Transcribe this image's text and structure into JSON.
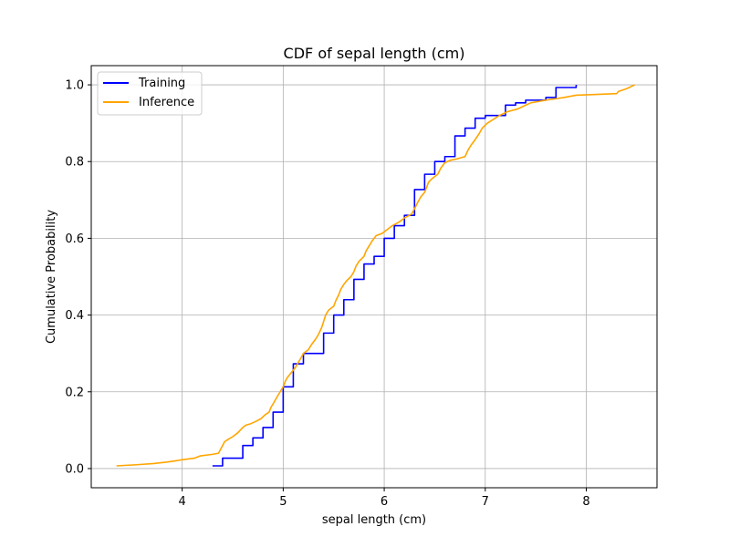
{
  "chart_data": {
    "type": "line",
    "title": "CDF of sepal length (cm)",
    "xlabel": "sepal length (cm)",
    "ylabel": "Cumulative Probability",
    "xlim": [
      3.1,
      8.7
    ],
    "ylim": [
      -0.05,
      1.05
    ],
    "xticks": [
      4,
      5,
      6,
      7,
      8
    ],
    "yticks": [
      0.0,
      0.2,
      0.4,
      0.6,
      0.8,
      1.0
    ],
    "xtick_labels": [
      "4",
      "5",
      "6",
      "7",
      "8"
    ],
    "ytick_labels": [
      "0.0",
      "0.2",
      "0.4",
      "0.6",
      "0.8",
      "1.0"
    ],
    "grid": true,
    "legend_position": "top-left",
    "series": [
      {
        "name": "Training",
        "color": "#0000ff",
        "step": true,
        "points": [
          [
            4.3,
            0.007
          ],
          [
            4.4,
            0.013
          ],
          [
            4.4,
            0.027
          ],
          [
            4.6,
            0.04
          ],
          [
            4.6,
            0.06
          ],
          [
            4.7,
            0.067
          ],
          [
            4.7,
            0.08
          ],
          [
            4.8,
            0.08
          ],
          [
            4.8,
            0.107
          ],
          [
            4.9,
            0.107
          ],
          [
            4.9,
            0.147
          ],
          [
            5.0,
            0.153
          ],
          [
            5.0,
            0.213
          ],
          [
            5.1,
            0.22
          ],
          [
            5.1,
            0.273
          ],
          [
            5.2,
            0.28
          ],
          [
            5.2,
            0.3
          ],
          [
            5.4,
            0.313
          ],
          [
            5.4,
            0.353
          ],
          [
            5.5,
            0.353
          ],
          [
            5.5,
            0.4
          ],
          [
            5.6,
            0.4
          ],
          [
            5.6,
            0.44
          ],
          [
            5.7,
            0.44
          ],
          [
            5.7,
            0.493
          ],
          [
            5.8,
            0.493
          ],
          [
            5.8,
            0.533
          ],
          [
            5.9,
            0.54
          ],
          [
            5.9,
            0.553
          ],
          [
            6.0,
            0.567
          ],
          [
            6.0,
            0.6
          ],
          [
            6.1,
            0.6
          ],
          [
            6.1,
            0.633
          ],
          [
            6.2,
            0.64
          ],
          [
            6.2,
            0.66
          ],
          [
            6.3,
            0.667
          ],
          [
            6.3,
            0.727
          ],
          [
            6.4,
            0.733
          ],
          [
            6.4,
            0.767
          ],
          [
            6.5,
            0.773
          ],
          [
            6.5,
            0.8
          ],
          [
            6.6,
            0.807
          ],
          [
            6.6,
            0.813
          ],
          [
            6.7,
            0.82
          ],
          [
            6.7,
            0.867
          ],
          [
            6.8,
            0.873
          ],
          [
            6.8,
            0.887
          ],
          [
            6.9,
            0.893
          ],
          [
            6.9,
            0.913
          ],
          [
            7.0,
            0.92
          ],
          [
            7.2,
            0.933
          ],
          [
            7.2,
            0.947
          ],
          [
            7.3,
            0.953
          ],
          [
            7.4,
            0.96
          ],
          [
            7.6,
            0.967
          ],
          [
            7.7,
            0.973
          ],
          [
            7.7,
            0.993
          ],
          [
            7.9,
            1.0
          ]
        ]
      },
      {
        "name": "Inference",
        "color": "#ffa500",
        "step": false,
        "points": [
          [
            3.35,
            0.007
          ],
          [
            3.55,
            0.01
          ],
          [
            3.72,
            0.013
          ],
          [
            3.85,
            0.017
          ],
          [
            3.93,
            0.02
          ],
          [
            4.0,
            0.023
          ],
          [
            4.12,
            0.027
          ],
          [
            4.18,
            0.033
          ],
          [
            4.3,
            0.037
          ],
          [
            4.36,
            0.04
          ],
          [
            4.38,
            0.05
          ],
          [
            4.4,
            0.06
          ],
          [
            4.42,
            0.07
          ],
          [
            4.46,
            0.077
          ],
          [
            4.5,
            0.083
          ],
          [
            4.55,
            0.093
          ],
          [
            4.6,
            0.107
          ],
          [
            4.63,
            0.113
          ],
          [
            4.68,
            0.117
          ],
          [
            4.73,
            0.123
          ],
          [
            4.78,
            0.13
          ],
          [
            4.82,
            0.14
          ],
          [
            4.86,
            0.147
          ],
          [
            4.88,
            0.16
          ],
          [
            4.91,
            0.173
          ],
          [
            4.94,
            0.187
          ],
          [
            4.97,
            0.2
          ],
          [
            5.0,
            0.213
          ],
          [
            5.02,
            0.227
          ],
          [
            5.04,
            0.237
          ],
          [
            5.08,
            0.25
          ],
          [
            5.12,
            0.263
          ],
          [
            5.15,
            0.277
          ],
          [
            5.18,
            0.29
          ],
          [
            5.2,
            0.3
          ],
          [
            5.25,
            0.31
          ],
          [
            5.28,
            0.323
          ],
          [
            5.32,
            0.337
          ],
          [
            5.35,
            0.35
          ],
          [
            5.38,
            0.367
          ],
          [
            5.4,
            0.383
          ],
          [
            5.42,
            0.4
          ],
          [
            5.45,
            0.413
          ],
          [
            5.5,
            0.423
          ],
          [
            5.52,
            0.437
          ],
          [
            5.55,
            0.453
          ],
          [
            5.57,
            0.467
          ],
          [
            5.6,
            0.48
          ],
          [
            5.63,
            0.49
          ],
          [
            5.67,
            0.5
          ],
          [
            5.7,
            0.513
          ],
          [
            5.72,
            0.527
          ],
          [
            5.75,
            0.54
          ],
          [
            5.8,
            0.553
          ],
          [
            5.82,
            0.567
          ],
          [
            5.85,
            0.58
          ],
          [
            5.88,
            0.593
          ],
          [
            5.92,
            0.607
          ],
          [
            5.98,
            0.613
          ],
          [
            6.03,
            0.623
          ],
          [
            6.08,
            0.633
          ],
          [
            6.15,
            0.643
          ],
          [
            6.2,
            0.653
          ],
          [
            6.27,
            0.663
          ],
          [
            6.3,
            0.677
          ],
          [
            6.33,
            0.693
          ],
          [
            6.36,
            0.707
          ],
          [
            6.4,
            0.72
          ],
          [
            6.42,
            0.733
          ],
          [
            6.44,
            0.747
          ],
          [
            6.48,
            0.757
          ],
          [
            6.53,
            0.767
          ],
          [
            6.56,
            0.783
          ],
          [
            6.6,
            0.797
          ],
          [
            6.65,
            0.803
          ],
          [
            6.72,
            0.807
          ],
          [
            6.8,
            0.813
          ],
          [
            6.83,
            0.83
          ],
          [
            6.86,
            0.843
          ],
          [
            6.9,
            0.857
          ],
          [
            6.94,
            0.873
          ],
          [
            6.97,
            0.887
          ],
          [
            7.02,
            0.9
          ],
          [
            7.08,
            0.91
          ],
          [
            7.14,
            0.92
          ],
          [
            7.22,
            0.93
          ],
          [
            7.32,
            0.937
          ],
          [
            7.4,
            0.947
          ],
          [
            7.45,
            0.953
          ],
          [
            7.6,
            0.96
          ],
          [
            7.78,
            0.967
          ],
          [
            7.9,
            0.973
          ],
          [
            8.3,
            0.977
          ],
          [
            8.32,
            0.983
          ],
          [
            8.4,
            0.99
          ],
          [
            8.48,
            1.0
          ]
        ]
      }
    ]
  }
}
